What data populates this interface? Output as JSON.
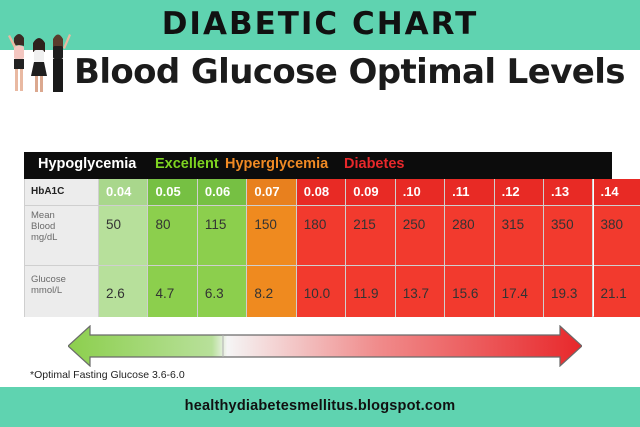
{
  "banner": {
    "title": "DIABETIC CHART"
  },
  "subtitle": "Blood Glucose Optimal Levels",
  "legend": [
    {
      "label": "Hypoglycemia",
      "color": "#ffffff"
    },
    {
      "label": "Excellent",
      "color": "#7ed321"
    },
    {
      "label": "Hyperglycemia",
      "color": "#f08a24"
    },
    {
      "label": "Diabetes",
      "color": "#e8282b"
    }
  ],
  "table": {
    "row_labels": {
      "hba1c": "HbA1C",
      "mean_line1": "Mean",
      "mean_line2": "Blood",
      "mean_line3": "mg/dL",
      "glucose_line1": "Glucose",
      "glucose_line2": "mmol/L"
    },
    "columns": [
      {
        "hba1c": "0.04",
        "mean": "50",
        "glucose": "2.6",
        "zone": "low"
      },
      {
        "hba1c": "0.05",
        "mean": "80",
        "glucose": "4.7",
        "zone": "excellent"
      },
      {
        "hba1c": "0.06",
        "mean": "115",
        "glucose": "6.3",
        "zone": "excellent"
      },
      {
        "hba1c": "0.07",
        "mean": "150",
        "glucose": "8.2",
        "zone": "hyper"
      },
      {
        "hba1c": "0.08",
        "mean": "180",
        "glucose": "10.0",
        "zone": "diabetes"
      },
      {
        "hba1c": "0.09",
        "mean": "215",
        "glucose": "11.9",
        "zone": "diabetes"
      },
      {
        "hba1c": ".10",
        "mean": "250",
        "glucose": "13.7",
        "zone": "diabetes"
      },
      {
        "hba1c": ".11",
        "mean": "280",
        "glucose": "15.6",
        "zone": "diabetes"
      },
      {
        "hba1c": ".12",
        "mean": "315",
        "glucose": "17.4",
        "zone": "diabetes"
      },
      {
        "hba1c": ".13",
        "mean": "350",
        "glucose": "19.3",
        "zone": "diabetes"
      },
      {
        "hba1c": ".14",
        "mean": "380",
        "glucose": "21.1",
        "zone": "diabetes"
      }
    ]
  },
  "zone_colors": {
    "low": {
      "head": "#a9d78c",
      "body": "#b7e09b"
    },
    "excellent": {
      "head": "#76c043",
      "body": "#8ccf4d"
    },
    "hyper": {
      "head": "#e8801e",
      "body": "#ef8a1f"
    },
    "diabetes": {
      "head": "#e82a25",
      "body": "#f23a2e"
    }
  },
  "arrow_colors": {
    "left": "#8ccf4d",
    "middle": "#f5f5f5",
    "right": "#e8282b"
  },
  "footnote": "*Optimal Fasting Glucose 3.6-6.0",
  "website": "healthydiabetesmellitus.blogspot.com"
}
